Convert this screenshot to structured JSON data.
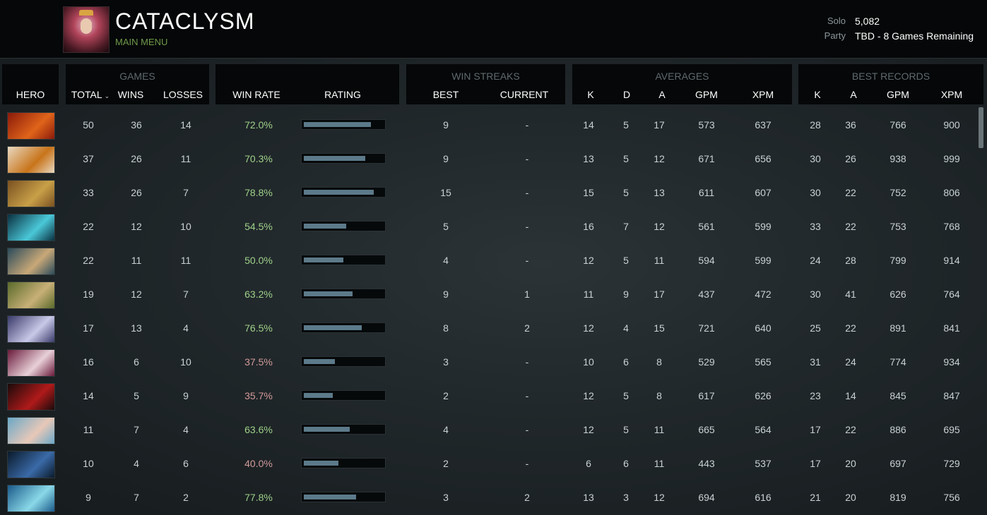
{
  "header": {
    "title": "CATACLYSM",
    "subtitle": "MAIN MENU",
    "solo_label": "Solo",
    "solo_value": "5,082",
    "party_label": "Party",
    "party_value": "TBD - 8 Games Remaining"
  },
  "groups": {
    "games": "GAMES",
    "win_streaks": "WIN STREAKS",
    "averages": "AVERAGES",
    "best_records": "BEST RECORDS"
  },
  "columns": {
    "hero": "HERO",
    "total": "TOTAL",
    "wins": "WINS",
    "losses": "LOSSES",
    "win_rate": "WIN RATE",
    "rating": "RATING",
    "best": "BEST",
    "current": "CURRENT",
    "avg_k": "K",
    "avg_d": "D",
    "avg_a": "A",
    "avg_gpm": "GPM",
    "avg_xpm": "XPM",
    "rec_k": "K",
    "rec_a": "A",
    "rec_gpm": "GPM",
    "rec_xpm": "XPM"
  },
  "icons": {
    "sort": "chevron-down-icon"
  },
  "colors": {
    "win_rate_high": "#9fd18a",
    "win_rate_low": "#d19a9a",
    "rating_bar": "#5c7a8a",
    "subtitle": "#6f9a4a"
  },
  "rows": [
    {
      "hero_colors": [
        "#8a1a0a",
        "#e0641a"
      ],
      "total": "50",
      "wins": "36",
      "losses": "14",
      "win_rate": "72.0%",
      "rating": 0.85,
      "best": "9",
      "current": "-",
      "k": "14",
      "d": "5",
      "a": "17",
      "gpm": "573",
      "xpm": "637",
      "rk": "28",
      "ra": "36",
      "rgpm": "766",
      "rxpm": "900"
    },
    {
      "hero_colors": [
        "#e8d8c0",
        "#c8741a"
      ],
      "total": "37",
      "wins": "26",
      "losses": "11",
      "win_rate": "70.3%",
      "rating": 0.78,
      "best": "9",
      "current": "-",
      "k": "13",
      "d": "5",
      "a": "12",
      "gpm": "671",
      "xpm": "656",
      "rk": "30",
      "ra": "26",
      "rgpm": "938",
      "rxpm": "999"
    },
    {
      "hero_colors": [
        "#7a5020",
        "#c8a048"
      ],
      "total": "33",
      "wins": "26",
      "losses": "7",
      "win_rate": "78.8%",
      "rating": 0.88,
      "best": "15",
      "current": "-",
      "k": "15",
      "d": "5",
      "a": "13",
      "gpm": "611",
      "xpm": "607",
      "rk": "30",
      "ra": "22",
      "rgpm": "752",
      "rxpm": "806"
    },
    {
      "hero_colors": [
        "#0a3040",
        "#4ac8d8"
      ],
      "total": "22",
      "wins": "12",
      "losses": "10",
      "win_rate": "54.5%",
      "rating": 0.54,
      "best": "5",
      "current": "-",
      "k": "16",
      "d": "7",
      "a": "12",
      "gpm": "561",
      "xpm": "599",
      "rk": "33",
      "ra": "22",
      "rgpm": "753",
      "rxpm": "768"
    },
    {
      "hero_colors": [
        "#2a4a5a",
        "#c8a878"
      ],
      "total": "22",
      "wins": "11",
      "losses": "11",
      "win_rate": "50.0%",
      "rating": 0.5,
      "best": "4",
      "current": "-",
      "k": "12",
      "d": "5",
      "a": "11",
      "gpm": "594",
      "xpm": "599",
      "rk": "24",
      "ra": "28",
      "rgpm": "799",
      "rxpm": "914"
    },
    {
      "hero_colors": [
        "#5a6a2a",
        "#c8b078"
      ],
      "total": "19",
      "wins": "12",
      "losses": "7",
      "win_rate": "63.2%",
      "rating": 0.62,
      "best": "9",
      "current": "1",
      "k": "11",
      "d": "9",
      "a": "17",
      "gpm": "437",
      "xpm": "472",
      "rk": "30",
      "ra": "41",
      "rgpm": "626",
      "rxpm": "764"
    },
    {
      "hero_colors": [
        "#3a3a6a",
        "#c8c8e8"
      ],
      "total": "17",
      "wins": "13",
      "losses": "4",
      "win_rate": "76.5%",
      "rating": 0.73,
      "best": "8",
      "current": "2",
      "k": "12",
      "d": "4",
      "a": "15",
      "gpm": "721",
      "xpm": "640",
      "rk": "25",
      "ra": "22",
      "rgpm": "891",
      "rxpm": "841"
    },
    {
      "hero_colors": [
        "#6a1a3a",
        "#e8d0d8"
      ],
      "total": "16",
      "wins": "6",
      "losses": "10",
      "win_rate": "37.5%",
      "rating": 0.39,
      "best": "3",
      "current": "-",
      "k": "10",
      "d": "6",
      "a": "8",
      "gpm": "529",
      "xpm": "565",
      "rk": "31",
      "ra": "24",
      "rgpm": "774",
      "rxpm": "934"
    },
    {
      "hero_colors": [
        "#1a0a0a",
        "#b01a1a"
      ],
      "total": "14",
      "wins": "5",
      "losses": "9",
      "win_rate": "35.7%",
      "rating": 0.37,
      "best": "2",
      "current": "-",
      "k": "12",
      "d": "5",
      "a": "8",
      "gpm": "617",
      "xpm": "626",
      "rk": "23",
      "ra": "14",
      "rgpm": "845",
      "rxpm": "847"
    },
    {
      "hero_colors": [
        "#6aa8c8",
        "#e8c8b8"
      ],
      "total": "11",
      "wins": "7",
      "losses": "4",
      "win_rate": "63.6%",
      "rating": 0.58,
      "best": "4",
      "current": "-",
      "k": "12",
      "d": "5",
      "a": "11",
      "gpm": "665",
      "xpm": "564",
      "rk": "17",
      "ra": "22",
      "rgpm": "886",
      "rxpm": "695"
    },
    {
      "hero_colors": [
        "#0a1a2a",
        "#3a6aa8"
      ],
      "total": "10",
      "wins": "4",
      "losses": "6",
      "win_rate": "40.0%",
      "rating": 0.44,
      "best": "2",
      "current": "-",
      "k": "6",
      "d": "6",
      "a": "11",
      "gpm": "443",
      "xpm": "537",
      "rk": "17",
      "ra": "20",
      "rgpm": "697",
      "rxpm": "729"
    },
    {
      "hero_colors": [
        "#1a5a8a",
        "#8ad8e8"
      ],
      "total": "9",
      "wins": "7",
      "losses": "2",
      "win_rate": "77.8%",
      "rating": 0.66,
      "best": "3",
      "current": "2",
      "k": "13",
      "d": "3",
      "a": "12",
      "gpm": "694",
      "xpm": "616",
      "rk": "21",
      "ra": "20",
      "rgpm": "819",
      "rxpm": "756"
    }
  ]
}
